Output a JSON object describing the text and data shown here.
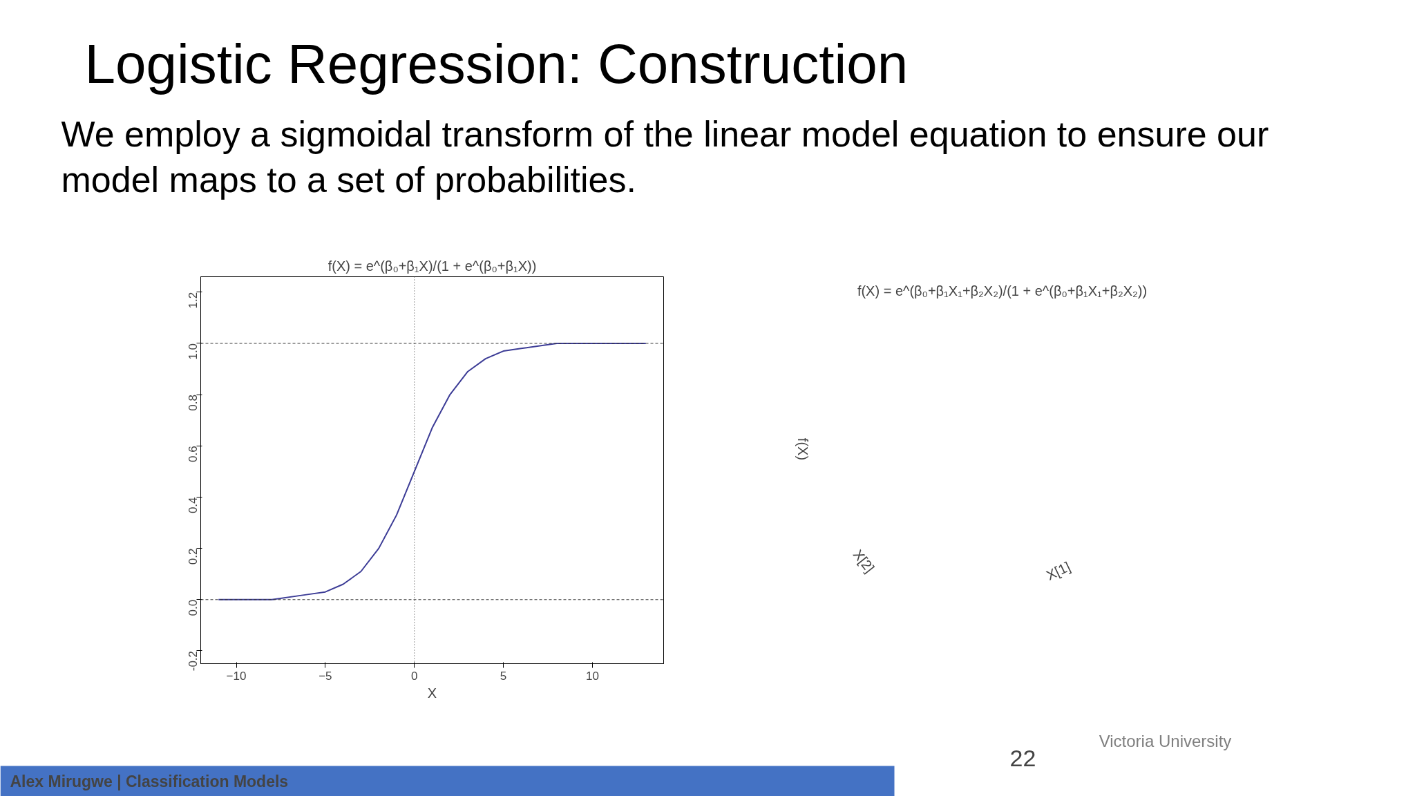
{
  "chart_data": [
    {
      "type": "line",
      "title": "f(X) = e^(β₀+β₁X)/(1 + e^(β₀+β₁X))",
      "xlabel": "X",
      "x": [
        -11,
        -8,
        -6,
        -5,
        -4,
        -3,
        -2,
        -1,
        0,
        1,
        2,
        3,
        4,
        5,
        6,
        8,
        13
      ],
      "series": [
        {
          "color": "#3c3c96",
          "values": [
            0.0,
            0.0,
            0.02,
            0.03,
            0.06,
            0.11,
            0.2,
            0.33,
            0.5,
            0.67,
            0.8,
            0.89,
            0.94,
            0.97,
            0.98,
            1.0,
            1.0
          ]
        }
      ],
      "xlim": [
        -12,
        14
      ],
      "ylim": [
        -0.25,
        1.26
      ],
      "xticks": [
        -10,
        -5,
        0,
        5,
        10
      ],
      "yticks": [
        {
          "value": -0.2,
          "label": "-0.2"
        },
        {
          "value": 0,
          "label": "0.0"
        },
        {
          "value": 0.2,
          "label": "0.2"
        },
        {
          "value": 0.4,
          "label": "0.4"
        },
        {
          "value": 0.6,
          "label": "0.6"
        },
        {
          "value": 0.8,
          "label": "0.8"
        },
        {
          "value": 1,
          "label": "1.0"
        },
        {
          "value": 1.2,
          "label": "1.2"
        }
      ],
      "ref_lines": [
        {
          "axis": "y",
          "value": 0,
          "line_style": "dashed"
        },
        {
          "axis": "y",
          "value": 1,
          "line_style": "dashed"
        },
        {
          "axis": "x",
          "value": 0,
          "line_style": "dotted"
        }
      ],
      "grid": false,
      "annotations": [
        "Logistic Regression: Construction",
        "We employ a sigmoidal transform of the linear model equation to ensure our model maps to a set of probabilities."
      ]
    },
    {
      "type": "other",
      "title": "f(X) = e^(β₀+β₁X₁+β₂X₂)/(1 + e^(β₀+β₁X₁+β₂X₂))",
      "xlabel": "X[1]",
      "ylabel": "f(X)",
      "annotations": [
        "X[2]",
        "Alex Mirugwe | Classification Models",
        "22",
        "Victoria University"
      ]
    }
  ]
}
